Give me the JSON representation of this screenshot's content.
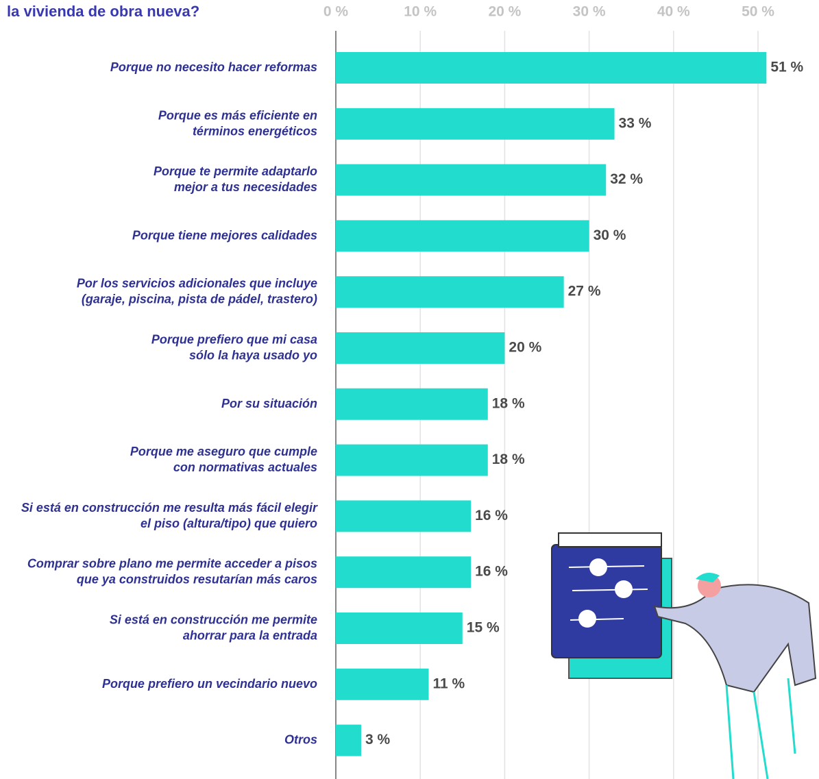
{
  "chart_data": {
    "type": "bar",
    "orientation": "horizontal",
    "title": "la vivienda de obra nueva?",
    "categories": [
      "Porque no necesito hacer reformas",
      "Porque es más eficiente en\ntérminos energéticos",
      "Porque te permite adaptarlo\nmejor a tus necesidades",
      "Porque tiene mejores calidades",
      "Por los servicios adicionales que incluye\n(garaje, piscina, pista de pádel, trastero)",
      "Porque prefiero que mi casa\nsólo la haya usado yo",
      "Por su situación",
      "Porque me aseguro que cumple\ncon normativas actuales",
      "Si está en construcción me resulta más fácil elegir\nel piso (altura/tipo) que quiero",
      "Comprar sobre plano me permite acceder a pisos\nque ya construidos resutarían más caros",
      "Si está en construcción me permite\nahorrar para la entrada",
      "Porque prefiero un vecindario nuevo",
      "Otros"
    ],
    "values": [
      51,
      33,
      32,
      30,
      27,
      20,
      18,
      18,
      16,
      16,
      15,
      11,
      3
    ],
    "value_labels": [
      "51 %",
      "33 %",
      "32 %",
      "30 %",
      "27 %",
      "20 %",
      "18 %",
      "18 %",
      "16 %",
      "16 %",
      "15 %",
      "11 %",
      "3 %"
    ],
    "color": "#22dccd",
    "xlim": [
      0,
      57
    ],
    "xticks": [
      {
        "value": 0,
        "label": "0 %"
      },
      {
        "value": 10,
        "label": "10 %"
      },
      {
        "value": 20,
        "label": "20 %"
      },
      {
        "value": 30,
        "label": "30 %"
      },
      {
        "value": 40,
        "label": "40 %"
      },
      {
        "value": 50,
        "label": "50 %"
      }
    ],
    "grid": true
  }
}
